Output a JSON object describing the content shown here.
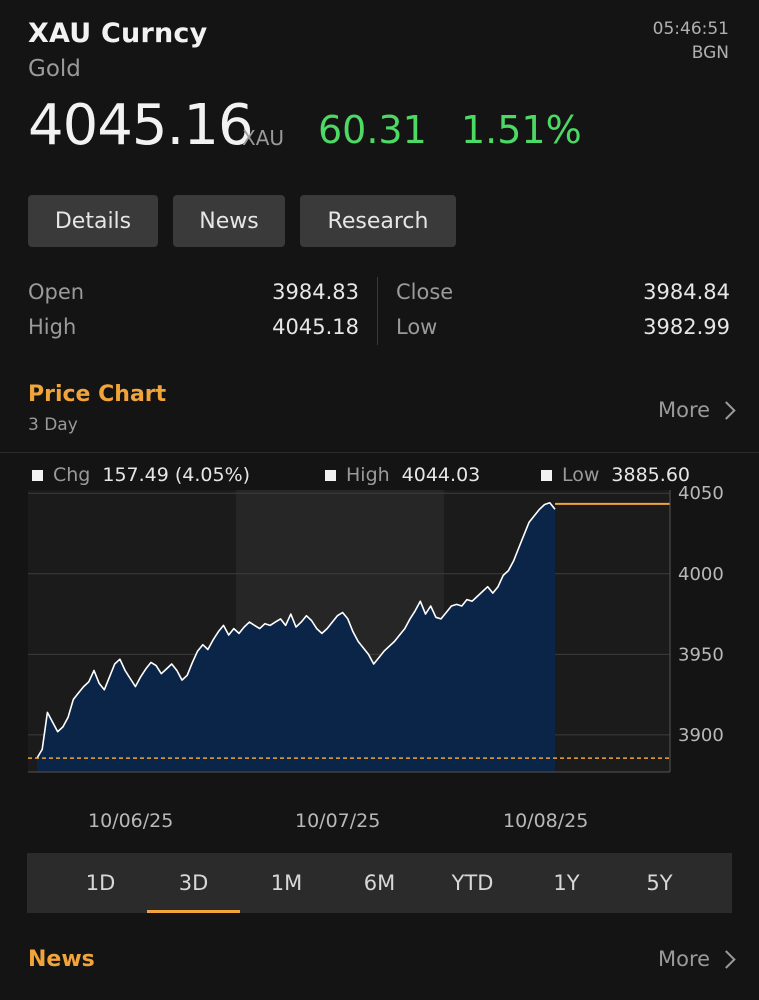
{
  "header": {
    "ticker": "XAU Curncy",
    "name": "Gold",
    "time": "05:46:51",
    "source": "BGN",
    "price": "4045.16",
    "currency": "XAU",
    "change": "60.31",
    "change_pct": "1.51%",
    "change_color": "#4cd964"
  },
  "buttons": {
    "details": "Details",
    "news": "News",
    "research": "Research"
  },
  "stats": {
    "open_label": "Open",
    "open_value": "3984.83",
    "high_label": "High",
    "high_value": "4045.18",
    "close_label": "Close",
    "close_value": "3984.84",
    "low_label": "Low",
    "low_value": "3982.99"
  },
  "chart_section": {
    "title": "Price Chart",
    "period": "3 Day",
    "more_label": "More"
  },
  "legend": {
    "chg_label": "Chg",
    "chg_value": "157.49 (4.05%)",
    "high_label": "High",
    "high_value": "4044.03",
    "low_label": "Low",
    "low_value": "3885.60"
  },
  "chart_data": {
    "type": "area",
    "title": "",
    "xlabel": "",
    "ylabel": "",
    "x_tick_labels": [
      "10/06/25",
      "10/07/25",
      "10/08/25"
    ],
    "y_ticks": [
      3900,
      3950,
      4000,
      4050
    ],
    "ylim": [
      3877,
      4052
    ],
    "grid": true,
    "reference_line_low": 3885.6,
    "line_color": "#ffffff",
    "fill_color": "#0b2548",
    "last_value_line_color": "#f0a43a",
    "series": [
      {
        "values": [
          3885.6,
          3891,
          3914,
          3908,
          3902,
          3905,
          3911,
          3922,
          3926,
          3930,
          3933,
          3940,
          3932,
          3928,
          3936,
          3944,
          3947,
          3940,
          3935,
          3930,
          3936,
          3941,
          3945,
          3943,
          3938,
          3941,
          3944,
          3940,
          3934,
          3937,
          3945,
          3952,
          3956,
          3953,
          3959,
          3964,
          3968,
          3962,
          3966,
          3963,
          3967,
          3970,
          3968,
          3966,
          3969,
          3968,
          3970,
          3972,
          3968,
          3975,
          3967,
          3970,
          3974,
          3971,
          3966,
          3963,
          3966,
          3970,
          3974,
          3976,
          3972,
          3964,
          3958,
          3954,
          3950,
          3944,
          3948,
          3952,
          3955,
          3958,
          3962,
          3966,
          3972,
          3977,
          3983,
          3975,
          3980,
          3973,
          3972,
          3976,
          3980,
          3981,
          3980,
          3984,
          3983,
          3986,
          3989,
          3992,
          3988,
          3992,
          3999,
          4002,
          4008,
          4016,
          4024,
          4032,
          4036,
          4040,
          4043,
          4044.03,
          4040
        ]
      }
    ]
  },
  "time_ranges": {
    "r1d": "1D",
    "r3d": "3D",
    "r1m": "1M",
    "r6m": "6M",
    "rytd": "YTD",
    "r1y": "1Y",
    "r5y": "5Y",
    "active": "3D"
  },
  "news_section": {
    "title": "News",
    "more_label": "More"
  }
}
